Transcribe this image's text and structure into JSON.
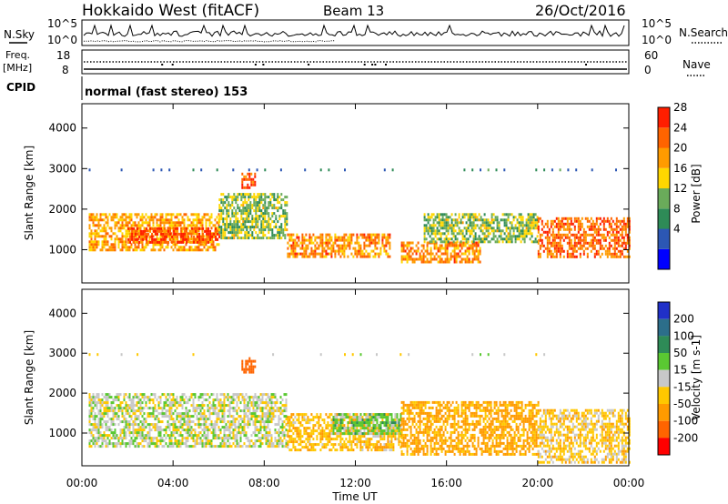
{
  "header": {
    "station": "Hokkaido West (fitACF)",
    "beam": "Beam 13",
    "date": "26/Oct/2016"
  },
  "left_labels": {
    "nsky": "N.Sky",
    "freq_top": "Freq.",
    "freq_unit": "[MHz]",
    "cpid": "CPID"
  },
  "right_labels": {
    "nsearch": "N.Search",
    "nave": "Nave"
  },
  "nsky_ticks": {
    "top": "10^5",
    "bottom": "10^0"
  },
  "nsearch_ticks": {
    "top": "10^5",
    "bottom": "10^0"
  },
  "freq_ticks": {
    "top": "18",
    "bottom": "8"
  },
  "nave_ticks": {
    "top": "60",
    "bottom": "0"
  },
  "cpid_text": "normal (fast stereo) 153",
  "power_panel": {
    "ylabel": "Slant Range [km]",
    "yticks": [
      "4000",
      "3000",
      "2000",
      "1000"
    ],
    "colorbar": {
      "label": "Power [dB]",
      "ticks": [
        "28",
        "24",
        "20",
        "16",
        "12",
        "8",
        "4"
      ],
      "colors": [
        "#0000ff",
        "#2c57b4",
        "#2e8b57",
        "#6aab5a",
        "#ffd700",
        "#ff9b00",
        "#ff6400",
        "#ff1e00"
      ]
    }
  },
  "velocity_panel": {
    "ylabel": "Slant Range [km]",
    "yticks": [
      "4000",
      "3000",
      "2000",
      "1000"
    ],
    "colorbar": {
      "label": "Velocity [m s-1]",
      "ticks": [
        "200",
        "100",
        "50",
        "15",
        "-15",
        "-50",
        "-100",
        "-200"
      ],
      "colors": [
        "#2030c8",
        "#2c6e8a",
        "#2e8b57",
        "#5ac832",
        "#c8c8c8",
        "#ffc800",
        "#ff9b00",
        "#ff6400",
        "#ff0000"
      ]
    }
  },
  "xaxis": {
    "ticks": [
      "00:00",
      "04:00",
      "08:00",
      "12:00",
      "16:00",
      "20:00",
      "00:00"
    ],
    "label": "Time UT"
  },
  "chart_data": [
    {
      "type": "heatmap",
      "title": "Power",
      "ylabel": "Slant Range [km]",
      "xlabel": "Time UT",
      "ylim": [
        180,
        4600
      ],
      "xlim_hours": [
        0,
        24
      ],
      "colorbar_label": "Power [dB]",
      "colorbar_range": [
        0,
        30
      ],
      "colorbar_ticks": [
        4,
        8,
        12,
        16,
        20,
        24,
        28
      ],
      "regions": [
        {
          "t_start": 0.3,
          "t_end": 6.0,
          "r_min": 1000,
          "r_max": 1900,
          "value": 20
        },
        {
          "t_start": 2.0,
          "t_end": 6.0,
          "r_min": 1150,
          "r_max": 1550,
          "value": 26
        },
        {
          "t_start": 6.0,
          "t_end": 9.0,
          "r_min": 1300,
          "r_max": 2400,
          "value": 14
        },
        {
          "t_start": 7.0,
          "t_end": 7.6,
          "r_min": 2500,
          "r_max": 2900,
          "value": 26
        },
        {
          "t_start": 9.0,
          "t_end": 13.5,
          "r_min": 800,
          "r_max": 1400,
          "value": 22
        },
        {
          "t_start": 14.0,
          "t_end": 17.5,
          "r_min": 700,
          "r_max": 1200,
          "value": 22
        },
        {
          "t_start": 15.0,
          "t_end": 20.0,
          "r_min": 1200,
          "r_max": 1900,
          "value": 14
        },
        {
          "t_start": 20.0,
          "t_end": 24.0,
          "r_min": 800,
          "r_max": 1800,
          "value": 24
        }
      ]
    },
    {
      "type": "heatmap",
      "title": "Velocity",
      "ylabel": "Slant Range [km]",
      "xlabel": "Time UT",
      "ylim": [
        180,
        4600
      ],
      "xlim_hours": [
        0,
        24
      ],
      "colorbar_label": "Velocity [m s-1]",
      "colorbar_ticks": [
        200,
        100,
        50,
        15,
        -15,
        -50,
        -100,
        -200
      ],
      "regions": [
        {
          "t_start": 0.3,
          "t_end": 9.0,
          "r_min": 700,
          "r_max": 2000,
          "value": 0
        },
        {
          "t_start": 7.0,
          "t_end": 7.6,
          "r_min": 2500,
          "r_max": 2900,
          "value": -150
        },
        {
          "t_start": 9.0,
          "t_end": 14.0,
          "r_min": 600,
          "r_max": 1500,
          "value": -40
        },
        {
          "t_start": 11.0,
          "t_end": 14.0,
          "r_min": 1000,
          "r_max": 1500,
          "value": 30
        },
        {
          "t_start": 14.0,
          "t_end": 20.0,
          "r_min": 500,
          "r_max": 1800,
          "value": -60
        },
        {
          "t_start": 20.0,
          "t_end": 24.0,
          "r_min": 300,
          "r_max": 1600,
          "value": -30
        }
      ]
    }
  ]
}
